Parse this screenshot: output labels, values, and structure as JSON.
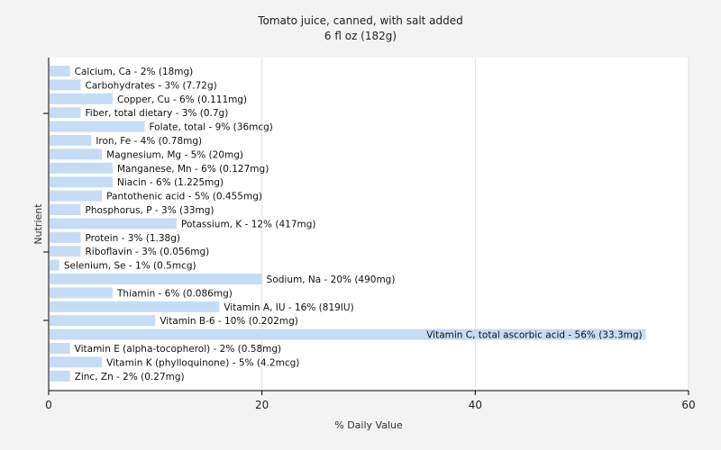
{
  "colors": {
    "background": "#f3f3f3",
    "plot_background": "#ffffff",
    "bar": "#c6dcf5",
    "grid": "#e2e2e2",
    "axis": "#000000"
  },
  "chart_data": {
    "type": "bar",
    "orientation": "horizontal",
    "title": "Tomato juice, canned, with salt added",
    "subtitle": "6 fl oz (182g)",
    "xlabel": "% Daily Value",
    "ylabel": "Nutrient",
    "xlim": [
      0,
      60
    ],
    "xticks": [
      0,
      20,
      40,
      60
    ],
    "grid": true,
    "legend": "none",
    "categories": [
      "Calcium, Ca",
      "Carbohydrates",
      "Copper, Cu",
      "Fiber, total dietary",
      "Folate, total",
      "Iron, Fe",
      "Magnesium, Mg",
      "Manganese, Mn",
      "Niacin",
      "Pantothenic acid",
      "Phosphorus, P",
      "Potassium, K",
      "Protein",
      "Riboflavin",
      "Selenium, Se",
      "Sodium, Na",
      "Thiamin",
      "Vitamin A, IU",
      "Vitamin B-6",
      "Vitamin C, total ascorbic acid",
      "Vitamin E (alpha-tocopherol)",
      "Vitamin K (phylloquinone)",
      "Zinc, Zn"
    ],
    "values": [
      2,
      3,
      6,
      3,
      9,
      4,
      5,
      6,
      6,
      5,
      3,
      12,
      3,
      3,
      1,
      20,
      6,
      16,
      10,
      56,
      2,
      5,
      2
    ],
    "labels": [
      "Calcium, Ca - 2% (18mg)",
      "Carbohydrates - 3% (7.72g)",
      "Copper, Cu - 6% (0.111mg)",
      "Fiber, total dietary - 3% (0.7g)",
      "Folate, total - 9% (36mcg)",
      "Iron, Fe - 4% (0.78mg)",
      "Magnesium, Mg - 5% (20mg)",
      "Manganese, Mn - 6% (0.127mg)",
      "Niacin - 6% (1.225mg)",
      "Pantothenic acid - 5% (0.455mg)",
      "Phosphorus, P - 3% (33mg)",
      "Potassium, K - 12% (417mg)",
      "Protein - 3% (1.38g)",
      "Riboflavin - 3% (0.056mg)",
      "Selenium, Se - 1% (0.5mcg)",
      "Sodium, Na - 20% (490mg)",
      "Thiamin - 6% (0.086mg)",
      "Vitamin A, IU - 16% (819IU)",
      "Vitamin B-6 - 10% (0.202mg)",
      "Vitamin C, total ascorbic acid - 56% (33.3mg)",
      "Vitamin E (alpha-tocopherol) - 2% (0.58mg)",
      "Vitamin K (phylloquinone) - 5% (4.2mcg)",
      "Zinc, Zn - 2% (0.27mg)"
    ]
  }
}
